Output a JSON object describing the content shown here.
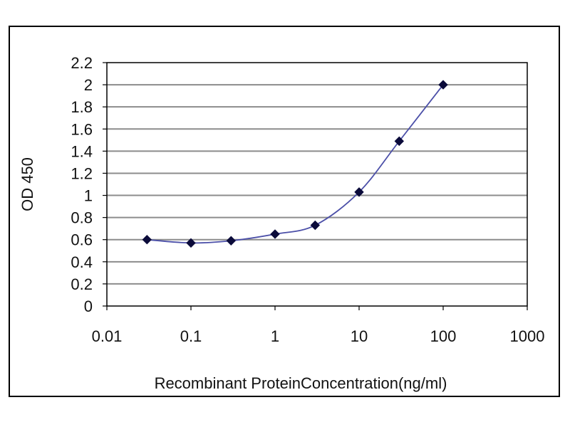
{
  "chart_data": {
    "type": "line",
    "xscale": "log",
    "x_ticks": [
      "0.01",
      "0.1",
      "1",
      "10",
      "100",
      "1000"
    ],
    "x_tick_values": [
      0.01,
      0.1,
      1,
      10,
      100,
      1000
    ],
    "xlim": [
      0.01,
      1000
    ],
    "y_ticks": [
      "0",
      "0.2",
      "0.4",
      "0.6",
      "0.8",
      "1",
      "1.2",
      "1.4",
      "1.6",
      "1.8",
      "2",
      "2.2"
    ],
    "y_tick_values": [
      0,
      0.2,
      0.4,
      0.6,
      0.8,
      1,
      1.2,
      1.4,
      1.6,
      1.8,
      2,
      2.2
    ],
    "ylim": [
      0,
      2.2
    ],
    "grid": "horizontal",
    "xlabel": "Recombinant ProteinConcentration(ng/ml)",
    "ylabel": "OD 450",
    "series": [
      {
        "x": [
          0.03,
          0.1,
          0.3,
          1,
          3,
          10,
          30,
          100
        ],
        "y": [
          0.6,
          0.57,
          0.59,
          0.65,
          0.73,
          1.03,
          1.49,
          2.0
        ]
      }
    ],
    "colors": {
      "line": "#4b4fa8",
      "marker": "#0b0b3a",
      "grid": "#8c8c8c"
    }
  }
}
